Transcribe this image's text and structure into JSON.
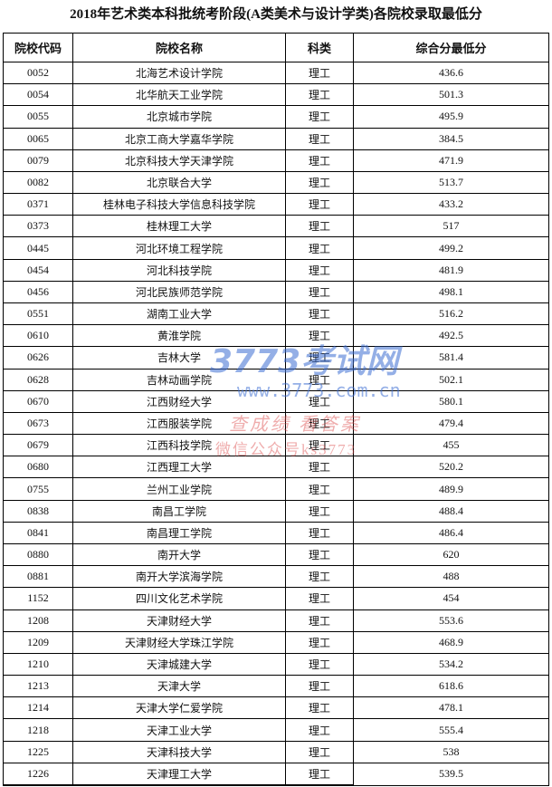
{
  "header": {
    "title": "2018年艺术类本科批统考阶段(A类美术与设计学类)各院校录取最低分"
  },
  "table": {
    "columns": [
      "院校代码",
      "院校名称",
      "科类",
      "综合分最低分"
    ],
    "rows": [
      [
        "0052",
        "北海艺术设计学院",
        "理工",
        "436.6"
      ],
      [
        "0054",
        "北华航天工业学院",
        "理工",
        "501.3"
      ],
      [
        "0055",
        "北京城市学院",
        "理工",
        "495.9"
      ],
      [
        "0065",
        "北京工商大学嘉华学院",
        "理工",
        "384.5"
      ],
      [
        "0079",
        "北京科技大学天津学院",
        "理工",
        "471.9"
      ],
      [
        "0082",
        "北京联合大学",
        "理工",
        "513.7"
      ],
      [
        "0371",
        "桂林电子科技大学信息科技学院",
        "理工",
        "433.2"
      ],
      [
        "0373",
        "桂林理工大学",
        "理工",
        "517"
      ],
      [
        "0445",
        "河北环境工程学院",
        "理工",
        "499.2"
      ],
      [
        "0454",
        "河北科技学院",
        "理工",
        "481.9"
      ],
      [
        "0456",
        "河北民族师范学院",
        "理工",
        "498.1"
      ],
      [
        "0551",
        "湖南工业大学",
        "理工",
        "516.2"
      ],
      [
        "0610",
        "黄淮学院",
        "理工",
        "492.5"
      ],
      [
        "0626",
        "吉林大学",
        "理工",
        "581.4"
      ],
      [
        "0628",
        "吉林动画学院",
        "理工",
        "502.1"
      ],
      [
        "0670",
        "江西财经大学",
        "理工",
        "580.1"
      ],
      [
        "0673",
        "江西服装学院",
        "理工",
        "479.4"
      ],
      [
        "0679",
        "江西科技学院",
        "理工",
        "455"
      ],
      [
        "0680",
        "江西理工大学",
        "理工",
        "520.2"
      ],
      [
        "0755",
        "兰州工业学院",
        "理工",
        "489.9"
      ],
      [
        "0838",
        "南昌工学院",
        "理工",
        "488.4"
      ],
      [
        "0841",
        "南昌理工学院",
        "理工",
        "486.4"
      ],
      [
        "0880",
        "南开大学",
        "理工",
        "620"
      ],
      [
        "0881",
        "南开大学滨海学院",
        "理工",
        "488"
      ],
      [
        "1152",
        "四川文化艺术学院",
        "理工",
        "454"
      ],
      [
        "1208",
        "天津财经大学",
        "理工",
        "553.6"
      ],
      [
        "1209",
        "天津财经大学珠江学院",
        "理工",
        "468.9"
      ],
      [
        "1210",
        "天津城建大学",
        "理工",
        "534.2"
      ],
      [
        "1213",
        "天津大学",
        "理工",
        "618.6"
      ],
      [
        "1214",
        "天津大学仁爱学院",
        "理工",
        "478.1"
      ],
      [
        "1218",
        "天津工业大学",
        "理工",
        "555.4"
      ],
      [
        "1225",
        "天津科技大学",
        "理工",
        "538"
      ],
      [
        "1226",
        "天津理工大学",
        "理工",
        "539.5"
      ]
    ]
  },
  "watermark": {
    "logo": "3773考试网",
    "url": "www.3773.com.cn",
    "slogan": "查成绩 看答案",
    "wechat": "微信公众号ks3773"
  }
}
